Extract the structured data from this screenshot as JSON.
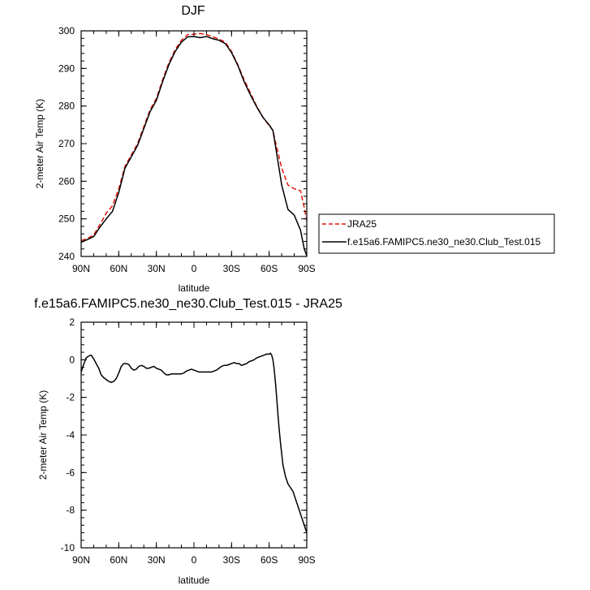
{
  "chart_data": [
    {
      "type": "line",
      "title": "DJF",
      "xlabel": "latitude",
      "ylabel": "2-meter Air Temp (K)",
      "xlim": [
        90,
        -90
      ],
      "ylim": [
        240,
        300
      ],
      "xticks": [
        90,
        60,
        30,
        0,
        -30,
        -60,
        -90
      ],
      "xticklabels": [
        "90N",
        "60N",
        "30N",
        "0",
        "30S",
        "60S",
        "90S"
      ],
      "yticks": [
        240,
        250,
        260,
        270,
        280,
        290,
        300
      ],
      "yticklabels": [
        "240",
        "250",
        "260",
        "270",
        "280",
        "290",
        "300"
      ],
      "legend": {
        "position": "right"
      },
      "series": [
        {
          "name": "JRA25",
          "color": "#e3170a",
          "dash": "dashed",
          "x": [
            90,
            85,
            80,
            75,
            70,
            65,
            60,
            55,
            50,
            45,
            40,
            35,
            30,
            25,
            20,
            15,
            10,
            5,
            0,
            -5,
            -10,
            -15,
            -20,
            -25,
            -30,
            -35,
            -40,
            -45,
            -50,
            -55,
            -60,
            -63,
            -65,
            -70,
            -75,
            -80,
            -85,
            -88,
            -90
          ],
          "y": [
            244.2,
            244.8,
            245.7,
            248.5,
            251.5,
            253.5,
            258,
            264,
            267,
            270,
            274.5,
            279,
            282,
            287,
            291.5,
            295,
            297.5,
            299,
            299.1,
            299.3,
            299,
            298.4,
            297.8,
            297,
            294.5,
            291,
            287,
            283.5,
            280,
            277,
            274.8,
            273.5,
            270.5,
            263.5,
            259,
            258,
            257.5,
            253,
            249.5
          ]
        },
        {
          "name": "f.e15a6.FAMIPC5.ne30_ne30.Club_Test.015",
          "color": "#000000",
          "dash": "solid",
          "x": [
            90,
            85,
            80,
            75,
            70,
            65,
            60,
            55,
            50,
            45,
            40,
            35,
            30,
            25,
            20,
            15,
            10,
            5,
            0,
            -5,
            -10,
            -15,
            -20,
            -25,
            -30,
            -35,
            -40,
            -45,
            -50,
            -55,
            -60,
            -63,
            -65,
            -70,
            -75,
            -80,
            -85,
            -88,
            -90
          ],
          "y": [
            243.8,
            244.5,
            245.3,
            247.8,
            250,
            252,
            257,
            263.5,
            266.5,
            269.5,
            274,
            278.5,
            281.5,
            286.5,
            291,
            294.5,
            297,
            298.4,
            298.5,
            298.2,
            298.5,
            297.9,
            297.5,
            296.6,
            294.2,
            290.8,
            286.5,
            283,
            279.8,
            277,
            275,
            273.5,
            269.5,
            259,
            252.5,
            251,
            247,
            242,
            240.2
          ]
        }
      ]
    },
    {
      "type": "line",
      "title": "f.e15a6.FAMIPC5.ne30_ne30.Club_Test.015 - JRA25",
      "xlabel": "latitude",
      "ylabel": "2-meter Air Temp (K)",
      "xlim": [
        90,
        -90
      ],
      "ylim": [
        -10,
        2
      ],
      "xticks": [
        90,
        60,
        30,
        0,
        -30,
        -60,
        -90
      ],
      "xticklabels": [
        "90N",
        "60N",
        "30N",
        "0",
        "30S",
        "60S",
        "90S"
      ],
      "yticks": [
        2,
        0,
        -2,
        -4,
        -6,
        -8,
        -10
      ],
      "yticklabels": [
        "2",
        "0",
        "-2",
        "-4",
        "-6",
        "-8",
        "-10"
      ],
      "series": [
        {
          "color": "#000000",
          "dash": "solid",
          "x": [
            90,
            88,
            86,
            84,
            82,
            80,
            78,
            76,
            74,
            72,
            70,
            68,
            66,
            64,
            62,
            60,
            58,
            56,
            54,
            52,
            50,
            48,
            46,
            44,
            42,
            40,
            38,
            36,
            34,
            32,
            30,
            28,
            26,
            24,
            22,
            20,
            18,
            16,
            14,
            12,
            10,
            8,
            6,
            4,
            2,
            0,
            -2,
            -4,
            -6,
            -8,
            -10,
            -12,
            -14,
            -16,
            -18,
            -20,
            -22,
            -24,
            -26,
            -28,
            -30,
            -32,
            -34,
            -36,
            -38,
            -40,
            -42,
            -44,
            -46,
            -48,
            -50,
            -52,
            -54,
            -56,
            -58,
            -60,
            -61,
            -62,
            -63,
            -64,
            -65,
            -66,
            -67,
            -68,
            -69,
            -70,
            -71,
            -72,
            -73,
            -74,
            -75,
            -76,
            -77,
            -78,
            -79,
            -80,
            -81,
            -82,
            -83,
            -84,
            -85,
            -86,
            -87,
            -88,
            -89,
            -90
          ],
          "y": [
            -0.65,
            -0.25,
            0.1,
            0.2,
            0.25,
            0.05,
            -0.2,
            -0.45,
            -0.8,
            -0.95,
            -1.05,
            -1.15,
            -1.2,
            -1.15,
            -1.0,
            -0.7,
            -0.35,
            -0.2,
            -0.2,
            -0.25,
            -0.45,
            -0.55,
            -0.5,
            -0.35,
            -0.3,
            -0.35,
            -0.45,
            -0.45,
            -0.4,
            -0.35,
            -0.45,
            -0.5,
            -0.55,
            -0.7,
            -0.8,
            -0.8,
            -0.75,
            -0.75,
            -0.75,
            -0.75,
            -0.75,
            -0.7,
            -0.6,
            -0.55,
            -0.5,
            -0.55,
            -0.6,
            -0.65,
            -0.65,
            -0.65,
            -0.65,
            -0.65,
            -0.65,
            -0.6,
            -0.55,
            -0.45,
            -0.35,
            -0.3,
            -0.3,
            -0.25,
            -0.2,
            -0.15,
            -0.2,
            -0.2,
            -0.3,
            -0.25,
            -0.2,
            -0.1,
            -0.05,
            0.0,
            0.1,
            0.15,
            0.2,
            0.25,
            0.3,
            0.3,
            0.35,
            0.25,
            0.0,
            -0.5,
            -1.2,
            -2.0,
            -2.9,
            -3.7,
            -4.4,
            -5.0,
            -5.6,
            -5.9,
            -6.2,
            -6.4,
            -6.6,
            -6.7,
            -6.8,
            -6.9,
            -7.0,
            -7.2,
            -7.4,
            -7.6,
            -7.8,
            -8.0,
            -8.2,
            -8.4,
            -8.6,
            -8.8,
            -9.0,
            -9.2
          ]
        }
      ]
    }
  ]
}
